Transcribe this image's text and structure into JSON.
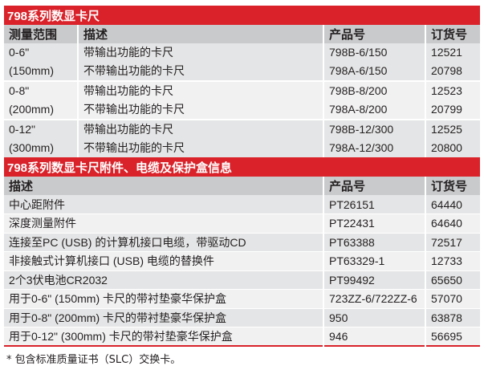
{
  "table1": {
    "title": "798系列数显卡尺",
    "headers": [
      "测量范围",
      "描述",
      "产品号",
      "订货号"
    ],
    "groups": [
      {
        "range": "0-6\"",
        "range_mm": "(150mm)",
        "items": [
          {
            "desc": "带输出功能的卡尺",
            "part": "798B-6/150",
            "order": "12521"
          },
          {
            "desc": "不带输出功能的卡尺",
            "part": "798A-6/150",
            "order": "20798"
          }
        ]
      },
      {
        "range": "0-8\"",
        "range_mm": "(200mm)",
        "items": [
          {
            "desc": "带输出功能的卡尺",
            "part": "798B-8/200",
            "order": "12523"
          },
          {
            "desc": "不带输出功能的卡尺",
            "part": "798A-8/200",
            "order": "20799"
          }
        ]
      },
      {
        "range": "0-12\"",
        "range_mm": "(300mm)",
        "items": [
          {
            "desc": "带输出功能的卡尺",
            "part": "798B-12/300",
            "order": "12525"
          },
          {
            "desc": "不带输出功能的卡尺",
            "part": "798A-12/300",
            "order": "20800"
          }
        ]
      }
    ]
  },
  "table2": {
    "title": "798系列数显卡尺附件、电缆及保护盒信息",
    "headers": [
      "描述",
      "产品号",
      "订货号"
    ],
    "rows": [
      {
        "desc": "中心距附件",
        "part": "PT26151",
        "order": "64440"
      },
      {
        "desc": "深度测量附件",
        "part": "PT22431",
        "order": "64640"
      },
      {
        "desc": "连接至PC (USB) 的计算机接口电缆，带驱动CD",
        "part": "PT63388",
        "order": "72517"
      },
      {
        "desc": "非接触式计算机接口 (USB) 电缆的替换件",
        "part": "PT63329-1",
        "order": "12733"
      },
      {
        "desc": "2个3伏电池CR2032",
        "part": "PT99492",
        "order": "65650"
      },
      {
        "desc": "用于0-6\" (150mm) 卡尺的带衬垫豪华保护盒",
        "part": "723ZZ-6/722ZZ-6",
        "order": "57070"
      },
      {
        "desc": "用于0-8\" (200mm) 卡尺的带衬垫豪华保护盒",
        "part": "950",
        "order": "63878"
      },
      {
        "desc": "用于0-12\" (300mm) 卡尺的带衬垫豪华保护盒",
        "part": "946",
        "order": "56695"
      }
    ]
  },
  "footnote": "* 包含标准质量证书（SLC）交换卡。",
  "colors": {
    "accent": "#d9222a",
    "header": "#c9cacc",
    "row_dark": "#e4e5e6",
    "row_light": "#f1f1f2"
  }
}
